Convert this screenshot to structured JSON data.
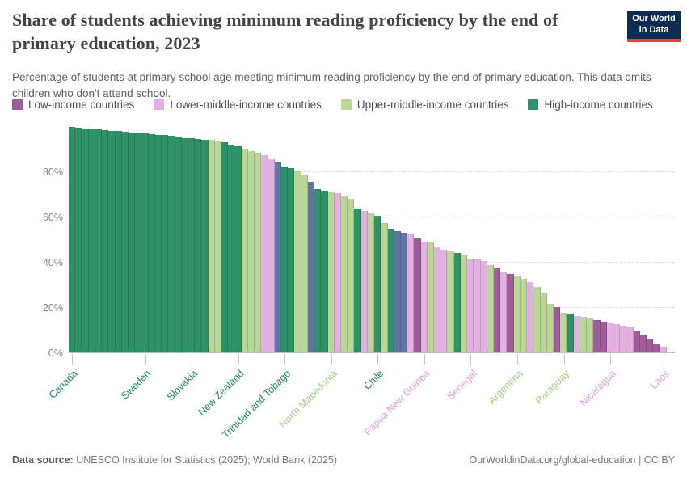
{
  "header": {
    "title": "Share of students achieving minimum reading proficiency by the end of primary education, 2023",
    "subtitle": "Percentage of students at primary school age meeting minimum reading proficiency by the end of primary education. This data omits children who don't attend school.",
    "logo": {
      "line1": "Our World",
      "line2": "in Data"
    }
  },
  "brand": {
    "navy": "#0d2c52",
    "red": "#df4538"
  },
  "legend": {
    "items": [
      {
        "key": "low",
        "label": "Low-income countries"
      },
      {
        "key": "lower_middle",
        "label": "Lower-middle-income countries"
      },
      {
        "key": "upper_middle",
        "label": "Upper-middle-income countries"
      },
      {
        "key": "high",
        "label": "High-income countries"
      }
    ]
  },
  "chart_data": {
    "type": "bar",
    "title": "Share of students achieving minimum reading proficiency by the end of primary education, 2023",
    "xlabel": "",
    "ylabel": "",
    "ylim": [
      0,
      100
    ],
    "grid": "dashed-horizontal",
    "legend_position": "top",
    "yticks": [
      {
        "v": 0,
        "label": "0%"
      },
      {
        "v": 20,
        "label": "20%"
      },
      {
        "v": 40,
        "label": "40%"
      },
      {
        "v": 60,
        "label": "60%"
      },
      {
        "v": 80,
        "label": "80%"
      }
    ],
    "colors": {
      "low": "#9e5c9b",
      "lower_middle": "#e2b1e0",
      "upper_middle": "#bad698",
      "high": "#2f9266",
      "other": "#6274a5"
    },
    "label_colors": {
      "low": "#9e5c9b",
      "lower_middle": "#d9a0d6",
      "upper_middle": "#a5c983",
      "high": "#23875e",
      "other": "#6274a5"
    },
    "bars": [
      {
        "v": 99.5,
        "c": "high",
        "label": "Canada"
      },
      {
        "v": 99.2,
        "c": "high"
      },
      {
        "v": 99.0,
        "c": "high"
      },
      {
        "v": 98.7,
        "c": "high"
      },
      {
        "v": 98.5,
        "c": "high"
      },
      {
        "v": 98.2,
        "c": "high"
      },
      {
        "v": 98.0,
        "c": "high"
      },
      {
        "v": 97.8,
        "c": "high"
      },
      {
        "v": 97.5,
        "c": "high"
      },
      {
        "v": 97.3,
        "c": "high"
      },
      {
        "v": 97.0,
        "c": "high"
      },
      {
        "v": 96.8,
        "c": "high",
        "label": "Sweden"
      },
      {
        "v": 96.5,
        "c": "high"
      },
      {
        "v": 96.2,
        "c": "high"
      },
      {
        "v": 96.0,
        "c": "high"
      },
      {
        "v": 95.6,
        "c": "high"
      },
      {
        "v": 95.2,
        "c": "high"
      },
      {
        "v": 94.8,
        "c": "high"
      },
      {
        "v": 94.5,
        "c": "high",
        "label": "Slovakia"
      },
      {
        "v": 94.3,
        "c": "high"
      },
      {
        "v": 94.0,
        "c": "high"
      },
      {
        "v": 93.8,
        "c": "upper_middle"
      },
      {
        "v": 93.3,
        "c": "upper_middle"
      },
      {
        "v": 92.7,
        "c": "high"
      },
      {
        "v": 91.8,
        "c": "high"
      },
      {
        "v": 90.9,
        "c": "high",
        "label": "New Zealand"
      },
      {
        "v": 90.0,
        "c": "upper_middle"
      },
      {
        "v": 89.1,
        "c": "upper_middle"
      },
      {
        "v": 88.2,
        "c": "upper_middle"
      },
      {
        "v": 87.0,
        "c": "lower_middle"
      },
      {
        "v": 85.2,
        "c": "lower_middle"
      },
      {
        "v": 83.8,
        "c": "other"
      },
      {
        "v": 82.0,
        "c": "high",
        "label": "Trinidad and Tobago"
      },
      {
        "v": 81.3,
        "c": "high"
      },
      {
        "v": 80.2,
        "c": "upper_middle"
      },
      {
        "v": 78.4,
        "c": "upper_middle"
      },
      {
        "v": 75.5,
        "c": "other"
      },
      {
        "v": 72.0,
        "c": "high"
      },
      {
        "v": 71.5,
        "c": "high"
      },
      {
        "v": 71.0,
        "c": "upper_middle",
        "label": "North Macedonia"
      },
      {
        "v": 70.5,
        "c": "lower_middle"
      },
      {
        "v": 69.0,
        "c": "upper_middle"
      },
      {
        "v": 68.0,
        "c": "upper_middle"
      },
      {
        "v": 63.5,
        "c": "high"
      },
      {
        "v": 62.5,
        "c": "lower_middle"
      },
      {
        "v": 61.5,
        "c": "upper_middle"
      },
      {
        "v": 60.5,
        "c": "high",
        "label": "Chile"
      },
      {
        "v": 57.0,
        "c": "upper_middle"
      },
      {
        "v": 54.5,
        "c": "high"
      },
      {
        "v": 53.5,
        "c": "other"
      },
      {
        "v": 53.0,
        "c": "other"
      },
      {
        "v": 52.5,
        "c": "lower_middle"
      },
      {
        "v": 50.5,
        "c": "low"
      },
      {
        "v": 49.0,
        "c": "lower_middle",
        "label": "Papua New Guinea"
      },
      {
        "v": 48.5,
        "c": "upper_middle"
      },
      {
        "v": 46.5,
        "c": "lower_middle"
      },
      {
        "v": 45.5,
        "c": "lower_middle"
      },
      {
        "v": 44.5,
        "c": "upper_middle"
      },
      {
        "v": 43.8,
        "c": "high"
      },
      {
        "v": 43.3,
        "c": "upper_middle"
      },
      {
        "v": 41.5,
        "c": "lower_middle",
        "label": "Senegal"
      },
      {
        "v": 41.0,
        "c": "lower_middle"
      },
      {
        "v": 40.3,
        "c": "lower_middle"
      },
      {
        "v": 38.5,
        "c": "upper_middle"
      },
      {
        "v": 37.0,
        "c": "low"
      },
      {
        "v": 35.5,
        "c": "lower_middle"
      },
      {
        "v": 34.5,
        "c": "low"
      },
      {
        "v": 33.5,
        "c": "upper_middle",
        "label": "Argentina"
      },
      {
        "v": 32.5,
        "c": "upper_middle"
      },
      {
        "v": 31.0,
        "c": "lower_middle"
      },
      {
        "v": 29.0,
        "c": "upper_middle"
      },
      {
        "v": 26.5,
        "c": "upper_middle"
      },
      {
        "v": 21.5,
        "c": "upper_middle"
      },
      {
        "v": 20.0,
        "c": "low"
      },
      {
        "v": 17.5,
        "c": "upper_middle",
        "label": "Paraguay"
      },
      {
        "v": 17.0,
        "c": "high"
      },
      {
        "v": 16.2,
        "c": "lower_middle"
      },
      {
        "v": 15.6,
        "c": "upper_middle"
      },
      {
        "v": 15.0,
        "c": "upper_middle"
      },
      {
        "v": 14.2,
        "c": "low"
      },
      {
        "v": 13.6,
        "c": "low"
      },
      {
        "v": 13.0,
        "c": "lower_middle",
        "label": "Nicaragua"
      },
      {
        "v": 12.4,
        "c": "lower_middle"
      },
      {
        "v": 11.8,
        "c": "lower_middle"
      },
      {
        "v": 11.2,
        "c": "lower_middle"
      },
      {
        "v": 9.5,
        "c": "low"
      },
      {
        "v": 8.0,
        "c": "low"
      },
      {
        "v": 6.0,
        "c": "low"
      },
      {
        "v": 4.0,
        "c": "low"
      },
      {
        "v": 2.5,
        "c": "lower_middle",
        "label": "Laos"
      }
    ]
  },
  "footer": {
    "datasource_label": "Data source:",
    "datasource": "UNESCO Institute for Statistics (2025); World Bank (2025)",
    "link": "OurWorldinData.org/global-education | CC BY"
  }
}
